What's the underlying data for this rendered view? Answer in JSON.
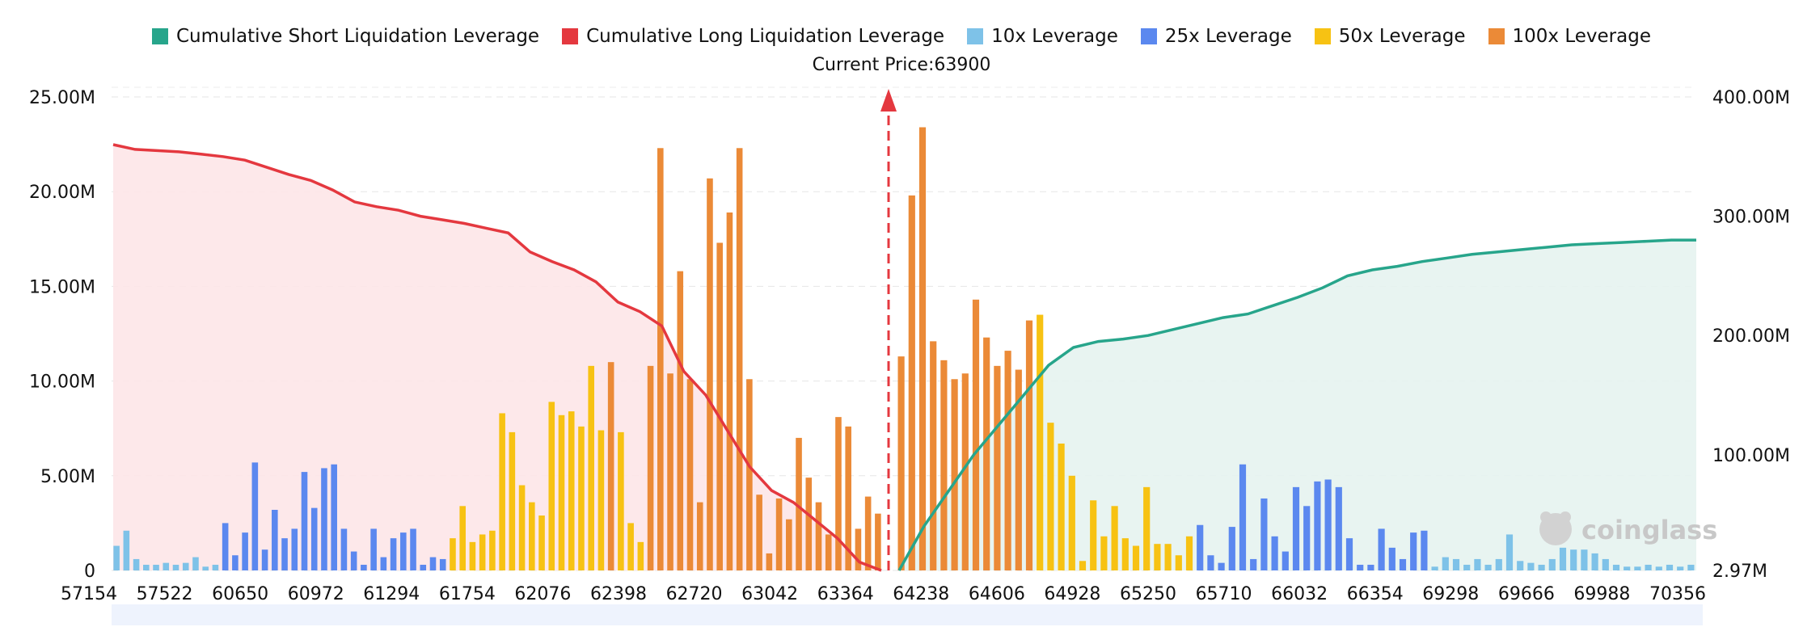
{
  "legend": [
    {
      "label": "Cumulative Short Liquidation Leverage",
      "color": "#27a58b"
    },
    {
      "label": "Cumulative Long Liquidation Leverage",
      "color": "#e4383f"
    },
    {
      "label": "10x Leverage",
      "color": "#7ec2e8"
    },
    {
      "label": "25x Leverage",
      "color": "#5b88ef"
    },
    {
      "label": "50x Leverage",
      "color": "#f7c213"
    },
    {
      "label": "100x Leverage",
      "color": "#eb8a37"
    }
  ],
  "current_price_label": "Current Price:63900",
  "watermark": "coinglass",
  "chart_data": {
    "type": "bar",
    "current_price": 63900,
    "y_left": {
      "ticks": [
        "0",
        "5.00M",
        "10.00M",
        "15.00M",
        "20.00M",
        "25.00M"
      ],
      "range": [
        0,
        25000000
      ]
    },
    "y_right": {
      "ticks": [
        "2.97M",
        "100.00M",
        "200.00M",
        "300.00M",
        "400.00M"
      ],
      "range": [
        2970000,
        400000000
      ]
    },
    "x_tick_labels": [
      "57154",
      "57522",
      "60650",
      "60972",
      "61294",
      "61754",
      "62076",
      "62398",
      "62720",
      "63042",
      "63364",
      "64238",
      "64606",
      "64928",
      "65250",
      "65710",
      "66032",
      "66354",
      "69298",
      "69666",
      "69988",
      "70356"
    ],
    "bars_left": [
      {
        "c": "10x",
        "v": 1.3
      },
      {
        "c": "10x",
        "v": 2.1
      },
      {
        "c": "10x",
        "v": 0.6
      },
      {
        "c": "10x",
        "v": 0.3
      },
      {
        "c": "10x",
        "v": 0.3
      },
      {
        "c": "10x",
        "v": 0.4
      },
      {
        "c": "10x",
        "v": 0.3
      },
      {
        "c": "10x",
        "v": 0.4
      },
      {
        "c": "10x",
        "v": 0.7
      },
      {
        "c": "10x",
        "v": 0.2
      },
      {
        "c": "10x",
        "v": 0.3
      },
      {
        "c": "25x",
        "v": 2.5
      },
      {
        "c": "25x",
        "v": 0.8
      },
      {
        "c": "25x",
        "v": 2.0
      },
      {
        "c": "25x",
        "v": 5.7
      },
      {
        "c": "25x",
        "v": 1.1
      },
      {
        "c": "25x",
        "v": 3.2
      },
      {
        "c": "25x",
        "v": 1.7
      },
      {
        "c": "25x",
        "v": 2.2
      },
      {
        "c": "25x",
        "v": 5.2
      },
      {
        "c": "25x",
        "v": 3.3
      },
      {
        "c": "25x",
        "v": 5.4
      },
      {
        "c": "25x",
        "v": 5.6
      },
      {
        "c": "25x",
        "v": 2.2
      },
      {
        "c": "25x",
        "v": 1.0
      },
      {
        "c": "25x",
        "v": 0.3
      },
      {
        "c": "25x",
        "v": 2.2
      },
      {
        "c": "25x",
        "v": 0.7
      },
      {
        "c": "25x",
        "v": 1.7
      },
      {
        "c": "25x",
        "v": 2.0
      },
      {
        "c": "25x",
        "v": 2.2
      },
      {
        "c": "25x",
        "v": 0.3
      },
      {
        "c": "25x",
        "v": 0.7
      },
      {
        "c": "25x",
        "v": 0.6
      },
      {
        "c": "50x",
        "v": 1.7
      },
      {
        "c": "50x",
        "v": 3.4
      },
      {
        "c": "50x",
        "v": 1.5
      },
      {
        "c": "50x",
        "v": 1.9
      },
      {
        "c": "50x",
        "v": 2.1
      },
      {
        "c": "50x",
        "v": 8.3
      },
      {
        "c": "50x",
        "v": 7.3
      },
      {
        "c": "50x",
        "v": 4.5
      },
      {
        "c": "50x",
        "v": 3.6
      },
      {
        "c": "50x",
        "v": 2.9
      },
      {
        "c": "50x",
        "v": 8.9
      },
      {
        "c": "50x",
        "v": 8.2
      },
      {
        "c": "50x",
        "v": 8.4
      },
      {
        "c": "50x",
        "v": 7.6
      },
      {
        "c": "50x",
        "v": 10.8
      },
      {
        "c": "50x",
        "v": 7.4
      },
      {
        "c": "100x",
        "v": 11.0
      },
      {
        "c": "50x",
        "v": 7.3
      },
      {
        "c": "50x",
        "v": 2.5
      },
      {
        "c": "50x",
        "v": 1.5
      },
      {
        "c": "100x",
        "v": 10.8
      },
      {
        "c": "100x",
        "v": 22.3
      },
      {
        "c": "100x",
        "v": 10.4
      },
      {
        "c": "100x",
        "v": 15.8
      },
      {
        "c": "100x",
        "v": 10.1
      },
      {
        "c": "100x",
        "v": 3.6
      },
      {
        "c": "100x",
        "v": 20.7
      },
      {
        "c": "100x",
        "v": 17.3
      },
      {
        "c": "100x",
        "v": 18.9
      },
      {
        "c": "100x",
        "v": 22.3
      },
      {
        "c": "100x",
        "v": 10.1
      },
      {
        "c": "100x",
        "v": 4.0
      },
      {
        "c": "100x",
        "v": 0.9
      },
      {
        "c": "100x",
        "v": 3.8
      },
      {
        "c": "100x",
        "v": 2.7
      },
      {
        "c": "100x",
        "v": 7.0
      },
      {
        "c": "100x",
        "v": 4.9
      },
      {
        "c": "100x",
        "v": 3.6
      },
      {
        "c": "100x",
        "v": 1.9
      },
      {
        "c": "100x",
        "v": 8.1
      },
      {
        "c": "100x",
        "v": 7.6
      },
      {
        "c": "100x",
        "v": 2.2
      },
      {
        "c": "100x",
        "v": 3.9
      },
      {
        "c": "100x",
        "v": 3.0
      }
    ],
    "bars_right": [
      {
        "c": "100x",
        "v": 11.3
      },
      {
        "c": "100x",
        "v": 19.8
      },
      {
        "c": "100x",
        "v": 23.4
      },
      {
        "c": "100x",
        "v": 12.1
      },
      {
        "c": "100x",
        "v": 11.1
      },
      {
        "c": "100x",
        "v": 10.1
      },
      {
        "c": "100x",
        "v": 10.4
      },
      {
        "c": "100x",
        "v": 14.3
      },
      {
        "c": "100x",
        "v": 12.3
      },
      {
        "c": "100x",
        "v": 10.8
      },
      {
        "c": "100x",
        "v": 11.6
      },
      {
        "c": "100x",
        "v": 10.6
      },
      {
        "c": "100x",
        "v": 13.2
      },
      {
        "c": "50x",
        "v": 13.5
      },
      {
        "c": "50x",
        "v": 7.8
      },
      {
        "c": "50x",
        "v": 6.7
      },
      {
        "c": "50x",
        "v": 5.0
      },
      {
        "c": "50x",
        "v": 0.5
      },
      {
        "c": "50x",
        "v": 3.7
      },
      {
        "c": "50x",
        "v": 1.8
      },
      {
        "c": "50x",
        "v": 3.4
      },
      {
        "c": "50x",
        "v": 1.7
      },
      {
        "c": "50x",
        "v": 1.3
      },
      {
        "c": "50x",
        "v": 4.4
      },
      {
        "c": "50x",
        "v": 1.4
      },
      {
        "c": "50x",
        "v": 1.4
      },
      {
        "c": "50x",
        "v": 0.8
      },
      {
        "c": "50x",
        "v": 1.8
      },
      {
        "c": "25x",
        "v": 2.4
      },
      {
        "c": "25x",
        "v": 0.8
      },
      {
        "c": "25x",
        "v": 0.4
      },
      {
        "c": "25x",
        "v": 2.3
      },
      {
        "c": "25x",
        "v": 5.6
      },
      {
        "c": "25x",
        "v": 0.6
      },
      {
        "c": "25x",
        "v": 3.8
      },
      {
        "c": "25x",
        "v": 1.8
      },
      {
        "c": "25x",
        "v": 1.0
      },
      {
        "c": "25x",
        "v": 4.4
      },
      {
        "c": "25x",
        "v": 3.4
      },
      {
        "c": "25x",
        "v": 4.7
      },
      {
        "c": "25x",
        "v": 4.8
      },
      {
        "c": "25x",
        "v": 4.4
      },
      {
        "c": "25x",
        "v": 1.7
      },
      {
        "c": "25x",
        "v": 0.3
      },
      {
        "c": "25x",
        "v": 0.3
      },
      {
        "c": "25x",
        "v": 2.2
      },
      {
        "c": "25x",
        "v": 1.2
      },
      {
        "c": "25x",
        "v": 0.6
      },
      {
        "c": "25x",
        "v": 2.0
      },
      {
        "c": "25x",
        "v": 2.1
      },
      {
        "c": "10x",
        "v": 0.2
      },
      {
        "c": "10x",
        "v": 0.7
      },
      {
        "c": "10x",
        "v": 0.6
      },
      {
        "c": "10x",
        "v": 0.3
      },
      {
        "c": "10x",
        "v": 0.6
      },
      {
        "c": "10x",
        "v": 0.3
      },
      {
        "c": "10x",
        "v": 0.6
      },
      {
        "c": "10x",
        "v": 1.9
      },
      {
        "c": "10x",
        "v": 0.5
      },
      {
        "c": "10x",
        "v": 0.4
      },
      {
        "c": "10x",
        "v": 0.3
      },
      {
        "c": "10x",
        "v": 0.6
      },
      {
        "c": "10x",
        "v": 1.2
      },
      {
        "c": "10x",
        "v": 1.1
      },
      {
        "c": "10x",
        "v": 1.1
      },
      {
        "c": "10x",
        "v": 0.9
      },
      {
        "c": "10x",
        "v": 0.6
      },
      {
        "c": "10x",
        "v": 0.3
      },
      {
        "c": "10x",
        "v": 0.2
      },
      {
        "c": "10x",
        "v": 0.2
      },
      {
        "c": "10x",
        "v": 0.3
      },
      {
        "c": "10x",
        "v": 0.2
      },
      {
        "c": "10x",
        "v": 0.3
      },
      {
        "c": "10x",
        "v": 0.2
      },
      {
        "c": "10x",
        "v": 0.3
      }
    ],
    "cumulative_long": [
      360,
      356,
      355,
      354,
      352,
      350,
      347,
      341,
      335,
      330,
      322,
      312,
      308,
      305,
      300,
      297,
      294,
      290,
      286,
      270,
      262,
      255,
      245,
      228,
      220,
      208,
      170,
      150,
      120,
      90,
      70,
      60,
      45,
      30,
      10,
      3
    ],
    "cumulative_short": [
      3,
      40,
      70,
      100,
      125,
      150,
      175,
      190,
      195,
      197,
      200,
      205,
      210,
      215,
      218,
      225,
      232,
      240,
      250,
      255,
      258,
      262,
      265,
      268,
      270,
      272,
      274,
      276,
      277,
      278,
      279,
      280,
      280
    ]
  }
}
